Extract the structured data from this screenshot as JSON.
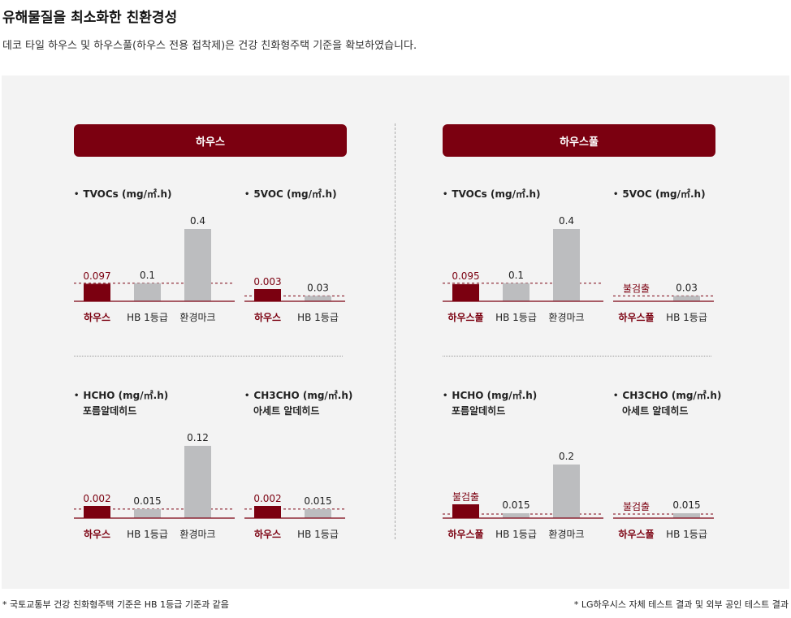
{
  "header": {
    "title": "유해물질을 최소화한 친환경성",
    "subtitle": "데코 타일 하우스 및 하우스풀(하우스 전용 접착제)은 건강 친화형주택 기준을 확보하였습니다."
  },
  "groups": [
    {
      "label": "하우스"
    },
    {
      "label": "하우스풀"
    }
  ],
  "chart_titles": [
    {
      "bullet": "•",
      "name": "TVOCs (mg/㎡.h)",
      "sub": ""
    },
    {
      "bullet": "•",
      "name": "5VOC (mg/㎡.h)",
      "sub": ""
    },
    {
      "bullet": "•",
      "name": "HCHO (mg/㎡.h)",
      "sub": "포름알데히드"
    },
    {
      "bullet": "•",
      "name": "CH3CHO (mg/㎡.h)",
      "sub": "아세트 알데히드"
    },
    {
      "bullet": "•",
      "name": "TVOCs (mg/㎡.h)",
      "sub": ""
    },
    {
      "bullet": "•",
      "name": "5VOC (mg/㎡.h)",
      "sub": ""
    },
    {
      "bullet": "•",
      "name": "HCHO (mg/㎡.h)",
      "sub": "포름알데히드"
    },
    {
      "bullet": "•",
      "name": "CH3CHO (mg/㎡.h)",
      "sub": "아세트 알데히드"
    }
  ],
  "colors": {
    "highlight": "#7b0010",
    "reference": "#bcbdbf",
    "axis": "#7b0010",
    "panel": "#f3f3f3"
  },
  "chart_data": [
    {
      "type": "bar",
      "group": "하우스",
      "title": "TVOCs (mg/㎡.h)",
      "categories": [
        "하우스",
        "HB 1등급",
        "환경마크"
      ],
      "values": [
        0.097,
        0.1,
        0.4
      ],
      "labels": [
        "0.097",
        "0.1",
        "0.4"
      ],
      "ylim": [
        0,
        0.4
      ],
      "threshold": 0.1
    },
    {
      "type": "bar",
      "group": "하우스",
      "title": "5VOC (mg/㎡.h)",
      "categories": [
        "하우스",
        "HB 1등급"
      ],
      "values": [
        0.003,
        0.03
      ],
      "labels": [
        "0.003",
        "0.03"
      ],
      "ylim": [
        0,
        0.4
      ],
      "threshold": 0.03
    },
    {
      "type": "bar",
      "group": "하우스",
      "title": "HCHO (mg/㎡.h)",
      "subtitle": "포름알데히드",
      "categories": [
        "하우스",
        "HB 1등급",
        "환경마크"
      ],
      "values": [
        0.002,
        0.015,
        0.12
      ],
      "labels": [
        "0.002",
        "0.015",
        "0.12"
      ],
      "ylim": [
        0,
        0.12
      ],
      "threshold": 0.015
    },
    {
      "type": "bar",
      "group": "하우스",
      "title": "CH3CHO (mg/㎡.h)",
      "subtitle": "아세트 알데히드",
      "categories": [
        "하우스",
        "HB 1등급"
      ],
      "values": [
        0.002,
        0.015
      ],
      "labels": [
        "0.002",
        "0.015"
      ],
      "ylim": [
        0,
        0.12
      ],
      "threshold": 0.015
    },
    {
      "type": "bar",
      "group": "하우스풀",
      "title": "TVOCs (mg/㎡.h)",
      "categories": [
        "하우스풀",
        "HB 1등급",
        "환경마크"
      ],
      "values": [
        0.095,
        0.1,
        0.4
      ],
      "labels": [
        "0.095",
        "0.1",
        "0.4"
      ],
      "ylim": [
        0,
        0.4
      ],
      "threshold": 0.1
    },
    {
      "type": "bar",
      "group": "하우스풀",
      "title": "5VOC (mg/㎡.h)",
      "categories": [
        "하우스풀",
        "HB 1등급"
      ],
      "values": [
        0,
        0.03
      ],
      "labels": [
        "불검출",
        "0.03"
      ],
      "ylim": [
        0,
        0.4
      ],
      "threshold": 0.03
    },
    {
      "type": "bar",
      "group": "하우스풀",
      "title": "HCHO (mg/㎡.h)",
      "subtitle": "포름알데히드",
      "categories": [
        "하우스풀",
        "HB 1등급",
        "환경마크"
      ],
      "values": [
        0,
        0.015,
        0.2
      ],
      "labels": [
        "불검출",
        "0.015",
        "0.2"
      ],
      "ylim": [
        0,
        0.2
      ],
      "threshold": 0.015,
      "note": "하우스풀 bar drawn at reference height although labelled 불검출"
    },
    {
      "type": "bar",
      "group": "하우스풀",
      "title": "CH3CHO (mg/㎡.h)",
      "subtitle": "아세트 알데히드",
      "categories": [
        "하우스풀",
        "HB 1등급"
      ],
      "values": [
        0,
        0.015
      ],
      "labels": [
        "불검출",
        "0.015"
      ],
      "ylim": [
        0,
        0.2
      ],
      "threshold": 0.015
    }
  ],
  "footnotes": {
    "left": "* 국토교통부 건강 친화형주택 기준은 HB 1등급 기준과 같음",
    "right": "* LG하우시스 자체 테스트 결과 및 외부 공인 테스트 결과"
  }
}
